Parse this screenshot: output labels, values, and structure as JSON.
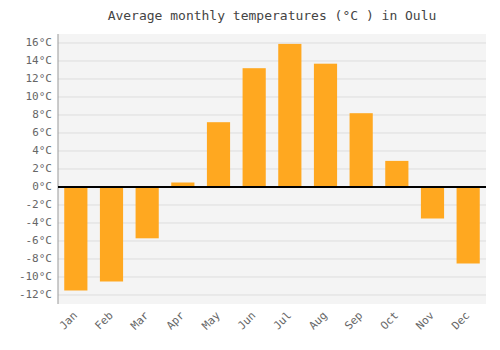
{
  "chart_data": {
    "type": "bar",
    "title": "Average monthly temperatures (°C ) in Oulu",
    "categories": [
      "Jan",
      "Feb",
      "Mar",
      "Apr",
      "May",
      "Jun",
      "Jul",
      "Aug",
      "Sep",
      "Oct",
      "Nov",
      "Dec"
    ],
    "values": [
      -11.5,
      -10.5,
      -5.7,
      0.5,
      7.2,
      13.2,
      15.9,
      13.7,
      8.2,
      2.9,
      -3.5,
      -8.5
    ],
    "color": "#FFA820",
    "ylim": [
      -13,
      17
    ],
    "yticks": [
      {
        "value": -12,
        "label": "-12°C"
      },
      {
        "value": -10,
        "label": "-10°C"
      },
      {
        "value": -8,
        "label": "-8°C"
      },
      {
        "value": -6,
        "label": "-6°C"
      },
      {
        "value": -4,
        "label": "-4°C"
      },
      {
        "value": -2,
        "label": "-2°C"
      },
      {
        "value": 0,
        "label": "0°C"
      },
      {
        "value": 2,
        "label": "2°C"
      },
      {
        "value": 4,
        "label": "4°C"
      },
      {
        "value": 6,
        "label": "6°C"
      },
      {
        "value": 8,
        "label": "8°C"
      },
      {
        "value": 10,
        "label": "10°C"
      },
      {
        "value": 12,
        "label": "12°C"
      },
      {
        "value": 14,
        "label": "14°C"
      },
      {
        "value": 16,
        "label": "16°C"
      }
    ],
    "grid": true
  }
}
